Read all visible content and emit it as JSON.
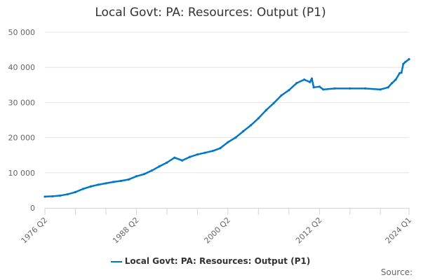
{
  "chart_data": {
    "type": "line",
    "title": "Local Govt: PA: Resources: Output (P1)",
    "xlabel": "",
    "ylabel": "",
    "ylim": [
      0,
      50000
    ],
    "yticks": [
      0,
      10000,
      20000,
      30000,
      40000,
      50000
    ],
    "ytick_labels": [
      "0",
      "10 000",
      "20 000",
      "30 000",
      "40 000",
      "50 000"
    ],
    "xtick_labels": [
      "1976 Q2",
      "1988 Q2",
      "2000 Q2",
      "2012 Q2",
      "2024 Q1"
    ],
    "grid": true,
    "legend_position": "bottom",
    "color": "#0077c8",
    "series": [
      {
        "name": "Local Govt: PA: Resources: Output (P1)",
        "points": [
          [
            "1976 Q2",
            3200
          ],
          [
            "1977 Q2",
            3300
          ],
          [
            "1978 Q2",
            3500
          ],
          [
            "1979 Q2",
            3900
          ],
          [
            "1980 Q2",
            4500
          ],
          [
            "1981 Q2",
            5400
          ],
          [
            "1982 Q2",
            6100
          ],
          [
            "1983 Q2",
            6600
          ],
          [
            "1984 Q2",
            7000
          ],
          [
            "1985 Q2",
            7400
          ],
          [
            "1986 Q2",
            7700
          ],
          [
            "1987 Q2",
            8100
          ],
          [
            "1988 Q2",
            9000
          ],
          [
            "1989 Q2",
            9600
          ],
          [
            "1990 Q2",
            10600
          ],
          [
            "1991 Q2",
            11800
          ],
          [
            "1992 Q2",
            12900
          ],
          [
            "1993 Q2",
            14300
          ],
          [
            "1994 Q2",
            13500
          ],
          [
            "1995 Q2",
            14500
          ],
          [
            "1996 Q2",
            15200
          ],
          [
            "1997 Q2",
            15700
          ],
          [
            "1998 Q2",
            16200
          ],
          [
            "1999 Q2",
            17000
          ],
          [
            "2000 Q2",
            18700
          ],
          [
            "2001 Q2",
            20000
          ],
          [
            "2002 Q2",
            21800
          ],
          [
            "2003 Q2",
            23500
          ],
          [
            "2004 Q2",
            25500
          ],
          [
            "2005 Q2",
            27800
          ],
          [
            "2006 Q2",
            29800
          ],
          [
            "2007 Q2",
            32000
          ],
          [
            "2008 Q2",
            33500
          ],
          [
            "2009 Q2",
            35500
          ],
          [
            "2010 Q2",
            36500
          ],
          [
            "2011 Q1",
            35800
          ],
          [
            "2011 Q2",
            36800
          ],
          [
            "2011 Q3",
            34300
          ],
          [
            "2012 Q2",
            34500
          ],
          [
            "2012 Q4",
            33700
          ],
          [
            "2014 Q2",
            34000
          ],
          [
            "2016 Q2",
            34000
          ],
          [
            "2018 Q2",
            34000
          ],
          [
            "2020 Q2",
            33700
          ],
          [
            "2021 Q2",
            34300
          ],
          [
            "2021 Q4",
            35500
          ],
          [
            "2022 Q2",
            36500
          ],
          [
            "2022 Q4",
            38300
          ],
          [
            "2023 Q1",
            38500
          ],
          [
            "2023 Q2",
            41000
          ],
          [
            "2023 Q3",
            41500
          ],
          [
            "2024 Q1",
            42300
          ]
        ]
      }
    ]
  },
  "source_label": "Source:"
}
